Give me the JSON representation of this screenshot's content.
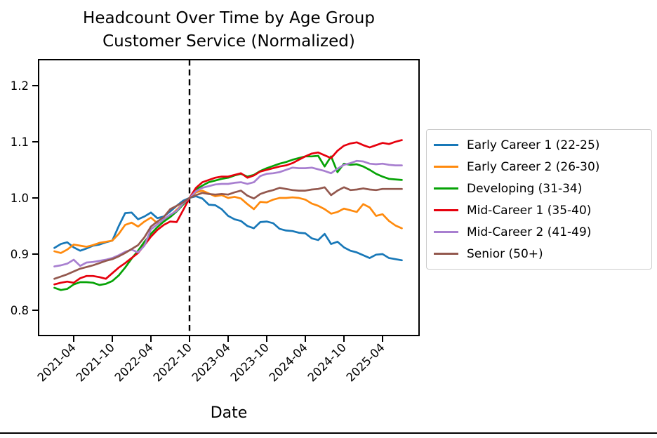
{
  "figure": {
    "title_line1": "Headcount Over Time by Age Group",
    "title_line2": "Customer Service (Normalized)",
    "xlabel": "Date"
  },
  "chart_data": {
    "type": "line",
    "title": "Headcount Over Time by Age Group — Customer Service (Normalized)",
    "xlabel": "Date",
    "ylabel": "",
    "grid": false,
    "legend_position": "center right outside",
    "x_start_month": "2021-01",
    "x_end_month": "2025-07",
    "x_tick_labels": [
      "2021-04",
      "2021-10",
      "2022-04",
      "2022-10",
      "2023-04",
      "2023-10",
      "2024-04",
      "2024-10",
      "2025-04"
    ],
    "x_tick_month_indices": [
      3,
      9,
      15,
      21,
      27,
      33,
      39,
      45,
      51
    ],
    "y_ticks": [
      0.8,
      0.9,
      1.0,
      1.1,
      1.2
    ],
    "ylim": [
      0.754,
      1.246
    ],
    "normalization_vline": {
      "month_index": 21,
      "date": "2022-10",
      "style": "black dashed"
    },
    "axis_color": "#000000",
    "series": [
      {
        "name": "Early Career 1 (22-25)",
        "color": "#1878b8",
        "values": [
          0.911,
          0.918,
          0.921,
          0.912,
          0.906,
          0.91,
          0.915,
          0.917,
          0.921,
          0.924,
          0.95,
          0.973,
          0.974,
          0.962,
          0.967,
          0.974,
          0.964,
          0.967,
          0.976,
          0.986,
          0.995,
          1.0,
          1.003,
          0.999,
          0.988,
          0.987,
          0.98,
          0.968,
          0.962,
          0.959,
          0.95,
          0.946,
          0.957,
          0.958,
          0.955,
          0.945,
          0.942,
          0.941,
          0.938,
          0.937,
          0.928,
          0.925,
          0.936,
          0.918,
          0.922,
          0.912,
          0.906,
          0.903,
          0.898,
          0.893,
          0.899,
          0.9,
          0.893,
          0.891,
          0.889
        ]
      },
      {
        "name": "Early Career 2 (26-30)",
        "color": "#ff8a0d",
        "values": [
          0.905,
          0.902,
          0.908,
          0.917,
          0.915,
          0.913,
          0.916,
          0.92,
          0.922,
          0.924,
          0.936,
          0.952,
          0.956,
          0.949,
          0.958,
          0.965,
          0.955,
          0.958,
          0.968,
          0.979,
          0.99,
          1.0,
          1.01,
          1.013,
          1.008,
          1.003,
          1.005,
          1.0,
          1.002,
          0.999,
          0.989,
          0.98,
          0.993,
          0.992,
          0.997,
          1.0,
          1.0,
          1.001,
          1.0,
          0.997,
          0.99,
          0.986,
          0.98,
          0.972,
          0.975,
          0.981,
          0.978,
          0.975,
          0.989,
          0.983,
          0.968,
          0.971,
          0.959,
          0.951,
          0.946
        ]
      },
      {
        "name": "Developing (31-34)",
        "color": "#06a306",
        "values": [
          0.84,
          0.836,
          0.838,
          0.846,
          0.85,
          0.85,
          0.849,
          0.845,
          0.847,
          0.852,
          0.862,
          0.876,
          0.892,
          0.906,
          0.922,
          0.936,
          0.948,
          0.958,
          0.966,
          0.976,
          0.988,
          1.0,
          1.015,
          1.022,
          1.028,
          1.031,
          1.034,
          1.036,
          1.04,
          1.043,
          1.038,
          1.041,
          1.048,
          1.053,
          1.057,
          1.061,
          1.064,
          1.068,
          1.071,
          1.074,
          1.074,
          1.075,
          1.056,
          1.074,
          1.046,
          1.061,
          1.059,
          1.06,
          1.056,
          1.05,
          1.043,
          1.038,
          1.034,
          1.033,
          1.032
        ]
      },
      {
        "name": "Mid-Career 1 (35-40)",
        "color": "#e6000d",
        "values": [
          0.846,
          0.849,
          0.851,
          0.849,
          0.857,
          0.861,
          0.861,
          0.859,
          0.856,
          0.866,
          0.876,
          0.884,
          0.893,
          0.902,
          0.916,
          0.931,
          0.943,
          0.952,
          0.958,
          0.957,
          0.978,
          1.0,
          1.018,
          1.028,
          1.032,
          1.036,
          1.038,
          1.038,
          1.041,
          1.044,
          1.036,
          1.04,
          1.047,
          1.05,
          1.053,
          1.056,
          1.058,
          1.062,
          1.068,
          1.074,
          1.079,
          1.081,
          1.076,
          1.071,
          1.084,
          1.093,
          1.097,
          1.099,
          1.094,
          1.09,
          1.094,
          1.098,
          1.096,
          1.1,
          1.103
        ]
      },
      {
        "name": "Mid-Career 2 (41-49)",
        "color": "#a87fd0",
        "values": [
          0.878,
          0.88,
          0.883,
          0.89,
          0.879,
          0.885,
          0.886,
          0.888,
          0.89,
          0.893,
          0.898,
          0.904,
          0.908,
          0.903,
          0.915,
          0.944,
          0.953,
          0.962,
          0.97,
          0.977,
          0.99,
          1.0,
          1.012,
          1.018,
          1.021,
          1.024,
          1.025,
          1.025,
          1.027,
          1.028,
          1.025,
          1.028,
          1.039,
          1.043,
          1.044,
          1.046,
          1.05,
          1.054,
          1.053,
          1.053,
          1.054,
          1.051,
          1.048,
          1.044,
          1.052,
          1.059,
          1.062,
          1.066,
          1.065,
          1.061,
          1.06,
          1.061,
          1.059,
          1.058,
          1.058
        ]
      },
      {
        "name": "Senior (50+)",
        "color": "#93584e",
        "values": [
          0.856,
          0.86,
          0.864,
          0.869,
          0.874,
          0.877,
          0.88,
          0.884,
          0.888,
          0.891,
          0.896,
          0.902,
          0.909,
          0.916,
          0.93,
          0.949,
          0.958,
          0.966,
          0.98,
          0.986,
          0.992,
          1.0,
          1.005,
          1.009,
          1.007,
          1.006,
          1.007,
          1.006,
          1.01,
          1.013,
          1.004,
          0.999,
          1.007,
          1.011,
          1.014,
          1.018,
          1.016,
          1.014,
          1.013,
          1.013,
          1.015,
          1.016,
          1.019,
          1.005,
          1.013,
          1.019,
          1.014,
          1.015,
          1.017,
          1.015,
          1.014,
          1.016,
          1.016,
          1.016,
          1.016
        ]
      }
    ]
  }
}
